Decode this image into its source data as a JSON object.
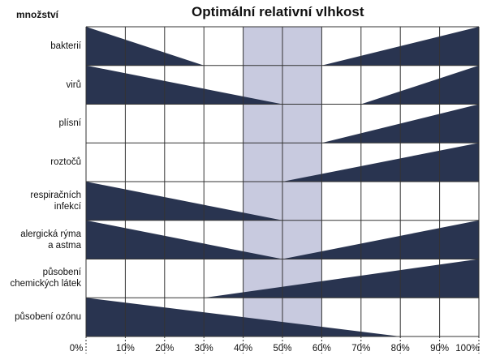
{
  "title": "Optimální relativní vlhkost",
  "corner_label": "množství",
  "colors": {
    "fill": "#222d4a",
    "optimal_band": "#c8cadf",
    "grid": "#333333"
  },
  "chart_data": {
    "type": "diagram",
    "title": "Optimální relativní vlhkost",
    "x_unit": "%",
    "xlim": [
      0,
      100
    ],
    "ticks": [
      "0%",
      "10%",
      "20%",
      "30%",
      "40%",
      "50%",
      "60%",
      "70%",
      "80%",
      "90%",
      "100%"
    ],
    "optimal_range": [
      40,
      60
    ],
    "rows": [
      {
        "label": "bakterií",
        "shapes": [
          {
            "side": "left",
            "from": 0,
            "to": 30
          },
          {
            "side": "right",
            "from": 60,
            "to": 100
          }
        ]
      },
      {
        "label": "virů",
        "shapes": [
          {
            "side": "left",
            "from": 0,
            "to": 50
          },
          {
            "side": "right",
            "from": 70,
            "to": 100
          }
        ]
      },
      {
        "label": "plísní",
        "shapes": [
          {
            "side": "right",
            "from": 60,
            "to": 100
          }
        ]
      },
      {
        "label": "roztočů",
        "shapes": [
          {
            "side": "right",
            "from": 50,
            "to": 100
          }
        ]
      },
      {
        "label": "respiračních\ninfekcí",
        "shapes": [
          {
            "side": "left",
            "from": 0,
            "to": 50
          }
        ]
      },
      {
        "label": "alergická rýma\na astma",
        "shapes": [
          {
            "side": "left",
            "from": 0,
            "to": 50
          },
          {
            "side": "right",
            "from": 50,
            "to": 100
          }
        ]
      },
      {
        "label": "působení\nchemických látek",
        "shapes": [
          {
            "side": "right",
            "from": 30,
            "to": 100
          }
        ]
      },
      {
        "label": "působení ozónu",
        "shapes": [
          {
            "side": "left",
            "from": 0,
            "to": 80
          }
        ]
      }
    ]
  }
}
